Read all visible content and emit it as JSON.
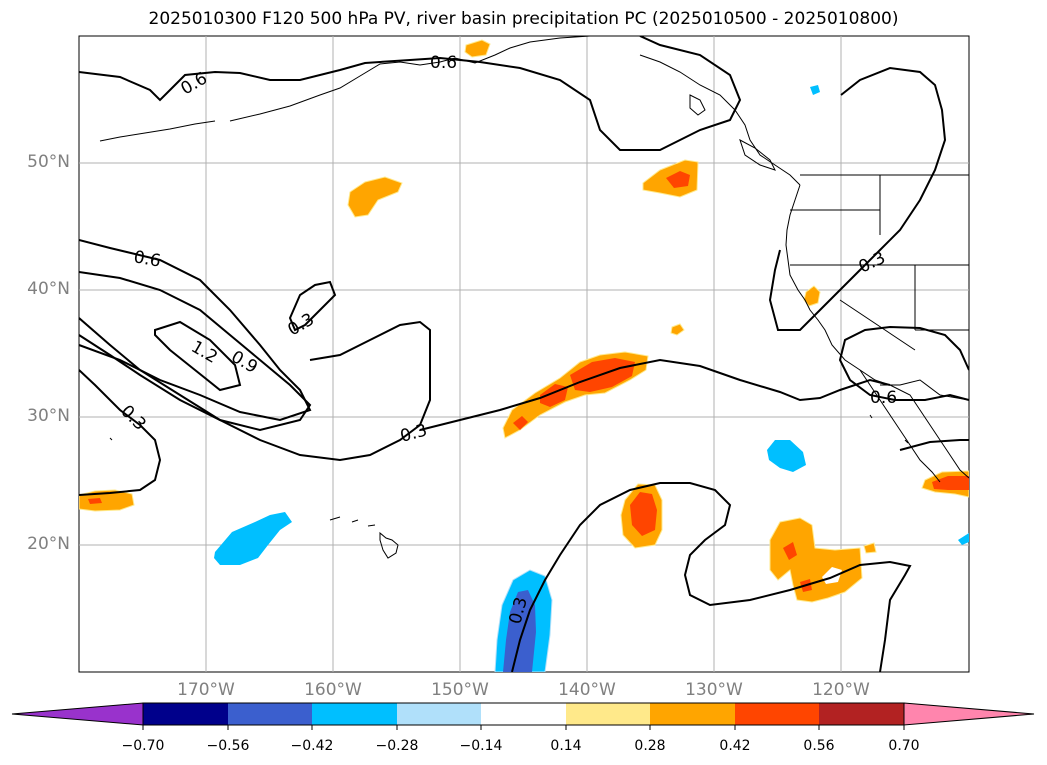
{
  "title": "2025010300 F120 500 hPa PV, river basin precipitation PC (2025010500 - 2025010800)",
  "map": {
    "lat_labels": [
      "50°N",
      "40°N",
      "30°N",
      "20°N"
    ],
    "lon_labels": [
      "170°W",
      "160°W",
      "150°W",
      "140°W",
      "130°W",
      "120°W"
    ],
    "contour_labels": [
      "0.6",
      "0.6",
      "0.6",
      "0.3",
      "1.2",
      "0.9",
      "0.3",
      "0.3",
      "0.3",
      "0.3",
      "0.6"
    ]
  },
  "colorbar": {
    "tick_labels": [
      "−0.70",
      "−0.56",
      "−0.42",
      "−0.28",
      "−0.14",
      "0.14",
      "0.28",
      "0.42",
      "0.56",
      "0.70"
    ],
    "colors": {
      "below": "#9932cc",
      "bins": [
        "#00008b",
        "#3b5fce",
        "#00bfff",
        "#b0e0fa",
        "#ffffff",
        "#ffe98a",
        "#ffa500",
        "#ff4500",
        "#b22222"
      ],
      "above": "#ff85ad"
    }
  }
}
